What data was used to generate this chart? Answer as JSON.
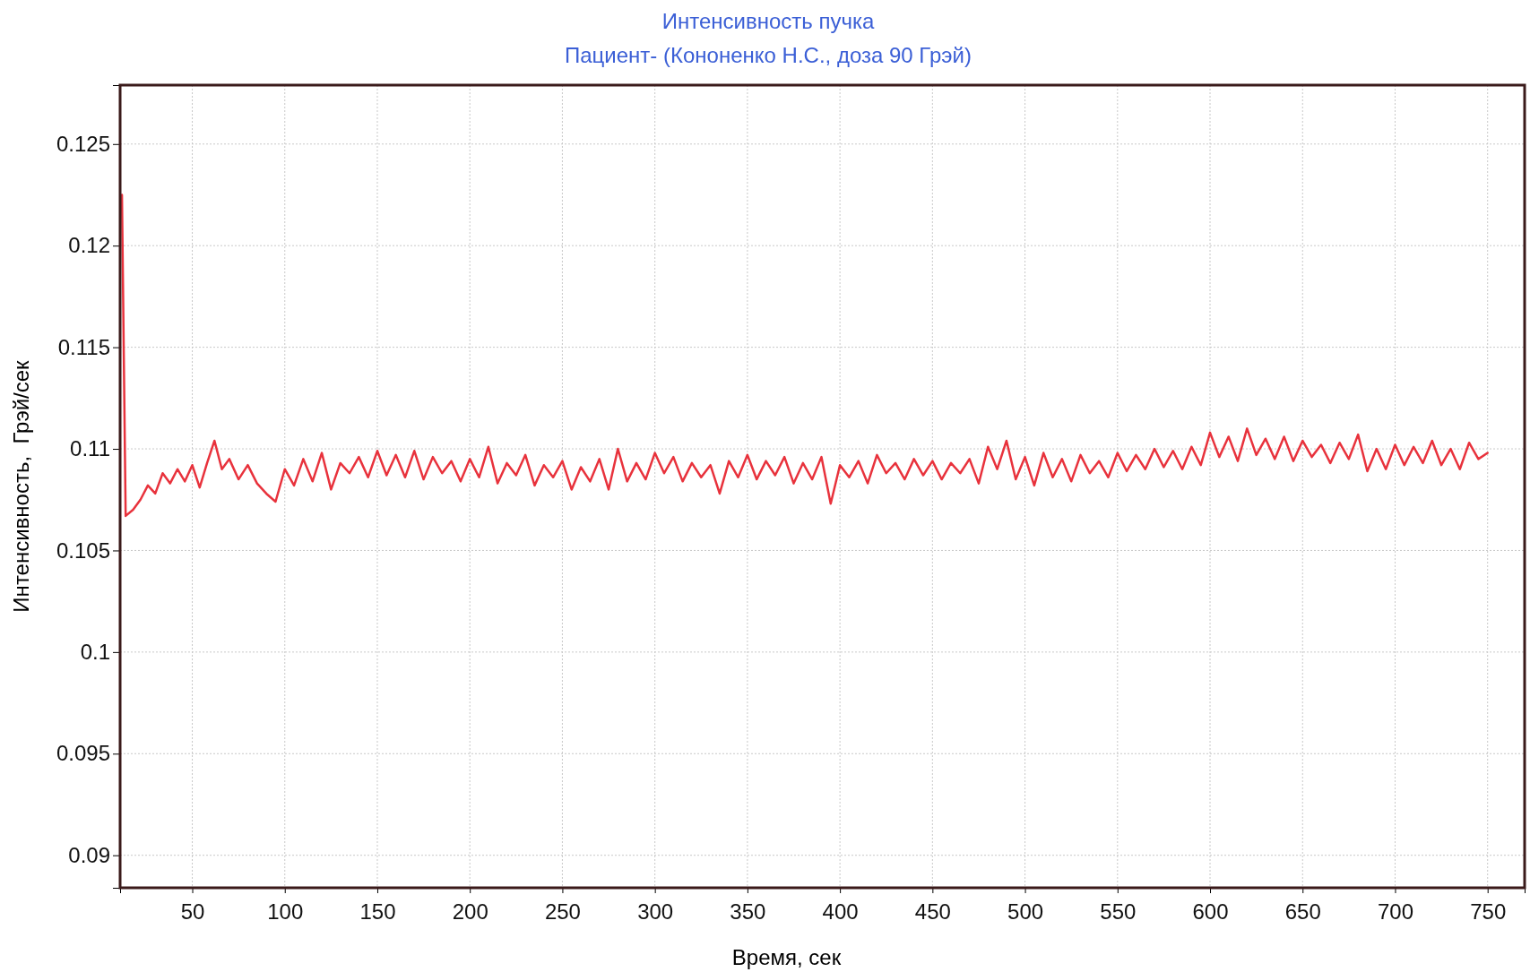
{
  "chart_data": {
    "type": "line",
    "title": "Интенсивность пучка",
    "subtitle": "Пациент- (Кононенко Н.С., доза 90 Грэй)",
    "xlabel": "Время, сек",
    "ylabel": "Интенсивность,  Грэй/сек",
    "xlim": [
      11,
      770
    ],
    "ylim": [
      0.0884,
      0.1279
    ],
    "xticks": [
      50,
      100,
      150,
      200,
      250,
      300,
      350,
      400,
      450,
      500,
      550,
      600,
      650,
      700,
      750
    ],
    "yticks": [
      0.09,
      0.095,
      0.1,
      0.105,
      0.11,
      0.115,
      0.12,
      0.125
    ],
    "grid": true,
    "marker": "none",
    "line_style": "solid",
    "series": [
      {
        "color": "#e8323c",
        "x": [
          12,
          14,
          18,
          22,
          26,
          30,
          34,
          38,
          42,
          46,
          50,
          54,
          58,
          62,
          66,
          70,
          75,
          80,
          85,
          90,
          95,
          100,
          105,
          110,
          115,
          120,
          125,
          130,
          135,
          140,
          145,
          150,
          155,
          160,
          165,
          170,
          175,
          180,
          185,
          190,
          195,
          200,
          205,
          210,
          215,
          220,
          225,
          230,
          235,
          240,
          245,
          250,
          255,
          260,
          265,
          270,
          275,
          280,
          285,
          290,
          295,
          300,
          305,
          310,
          315,
          320,
          325,
          330,
          335,
          340,
          345,
          350,
          355,
          360,
          365,
          370,
          375,
          380,
          385,
          390,
          395,
          400,
          405,
          410,
          415,
          420,
          425,
          430,
          435,
          440,
          445,
          450,
          455,
          460,
          465,
          470,
          475,
          480,
          485,
          490,
          495,
          500,
          505,
          510,
          515,
          520,
          525,
          530,
          535,
          540,
          545,
          550,
          555,
          560,
          565,
          570,
          575,
          580,
          585,
          590,
          595,
          600,
          605,
          610,
          615,
          620,
          625,
          630,
          635,
          640,
          645,
          650,
          655,
          660,
          665,
          670,
          675,
          680,
          685,
          690,
          695,
          700,
          705,
          710,
          715,
          720,
          725,
          730,
          735,
          740,
          745,
          750
        ],
        "values": [
          0.1225,
          0.1067,
          0.107,
          0.1075,
          0.1082,
          0.1078,
          0.1088,
          0.1083,
          0.109,
          0.1084,
          0.1092,
          0.1081,
          0.1093,
          0.1104,
          0.109,
          0.1095,
          0.1085,
          0.1092,
          0.1083,
          0.1078,
          0.1074,
          0.109,
          0.1082,
          0.1095,
          0.1084,
          0.1098,
          0.108,
          0.1093,
          0.1088,
          0.1096,
          0.1086,
          0.1099,
          0.1087,
          0.1097,
          0.1086,
          0.1099,
          0.1085,
          0.1096,
          0.1088,
          0.1094,
          0.1084,
          0.1095,
          0.1086,
          0.1101,
          0.1083,
          0.1093,
          0.1087,
          0.1097,
          0.1082,
          0.1092,
          0.1086,
          0.1094,
          0.108,
          0.1091,
          0.1084,
          0.1095,
          0.108,
          0.11,
          0.1084,
          0.1093,
          0.1085,
          0.1098,
          0.1088,
          0.1096,
          0.1084,
          0.1093,
          0.1086,
          0.1092,
          0.1078,
          0.1094,
          0.1086,
          0.1097,
          0.1085,
          0.1094,
          0.1087,
          0.1096,
          0.1083,
          0.1093,
          0.1085,
          0.1096,
          0.1073,
          0.1092,
          0.1086,
          0.1094,
          0.1083,
          0.1097,
          0.1088,
          0.1093,
          0.1085,
          0.1095,
          0.1087,
          0.1094,
          0.1085,
          0.1093,
          0.1088,
          0.1095,
          0.1083,
          0.1101,
          0.109,
          0.1104,
          0.1085,
          0.1096,
          0.1082,
          0.1098,
          0.1086,
          0.1095,
          0.1084,
          0.1097,
          0.1088,
          0.1094,
          0.1086,
          0.1098,
          0.1089,
          0.1097,
          0.109,
          0.11,
          0.1091,
          0.1099,
          0.109,
          0.1101,
          0.1092,
          0.1108,
          0.1096,
          0.1106,
          0.1094,
          0.111,
          0.1097,
          0.1105,
          0.1095,
          0.1106,
          0.1094,
          0.1104,
          0.1096,
          0.1102,
          0.1093,
          0.1103,
          0.1095,
          0.1107,
          0.1089,
          0.11,
          0.109,
          0.1102,
          0.1092,
          0.1101,
          0.1093,
          0.1104,
          0.1092,
          0.11,
          0.109,
          0.1103,
          0.1095,
          0.1098
        ]
      }
    ]
  }
}
